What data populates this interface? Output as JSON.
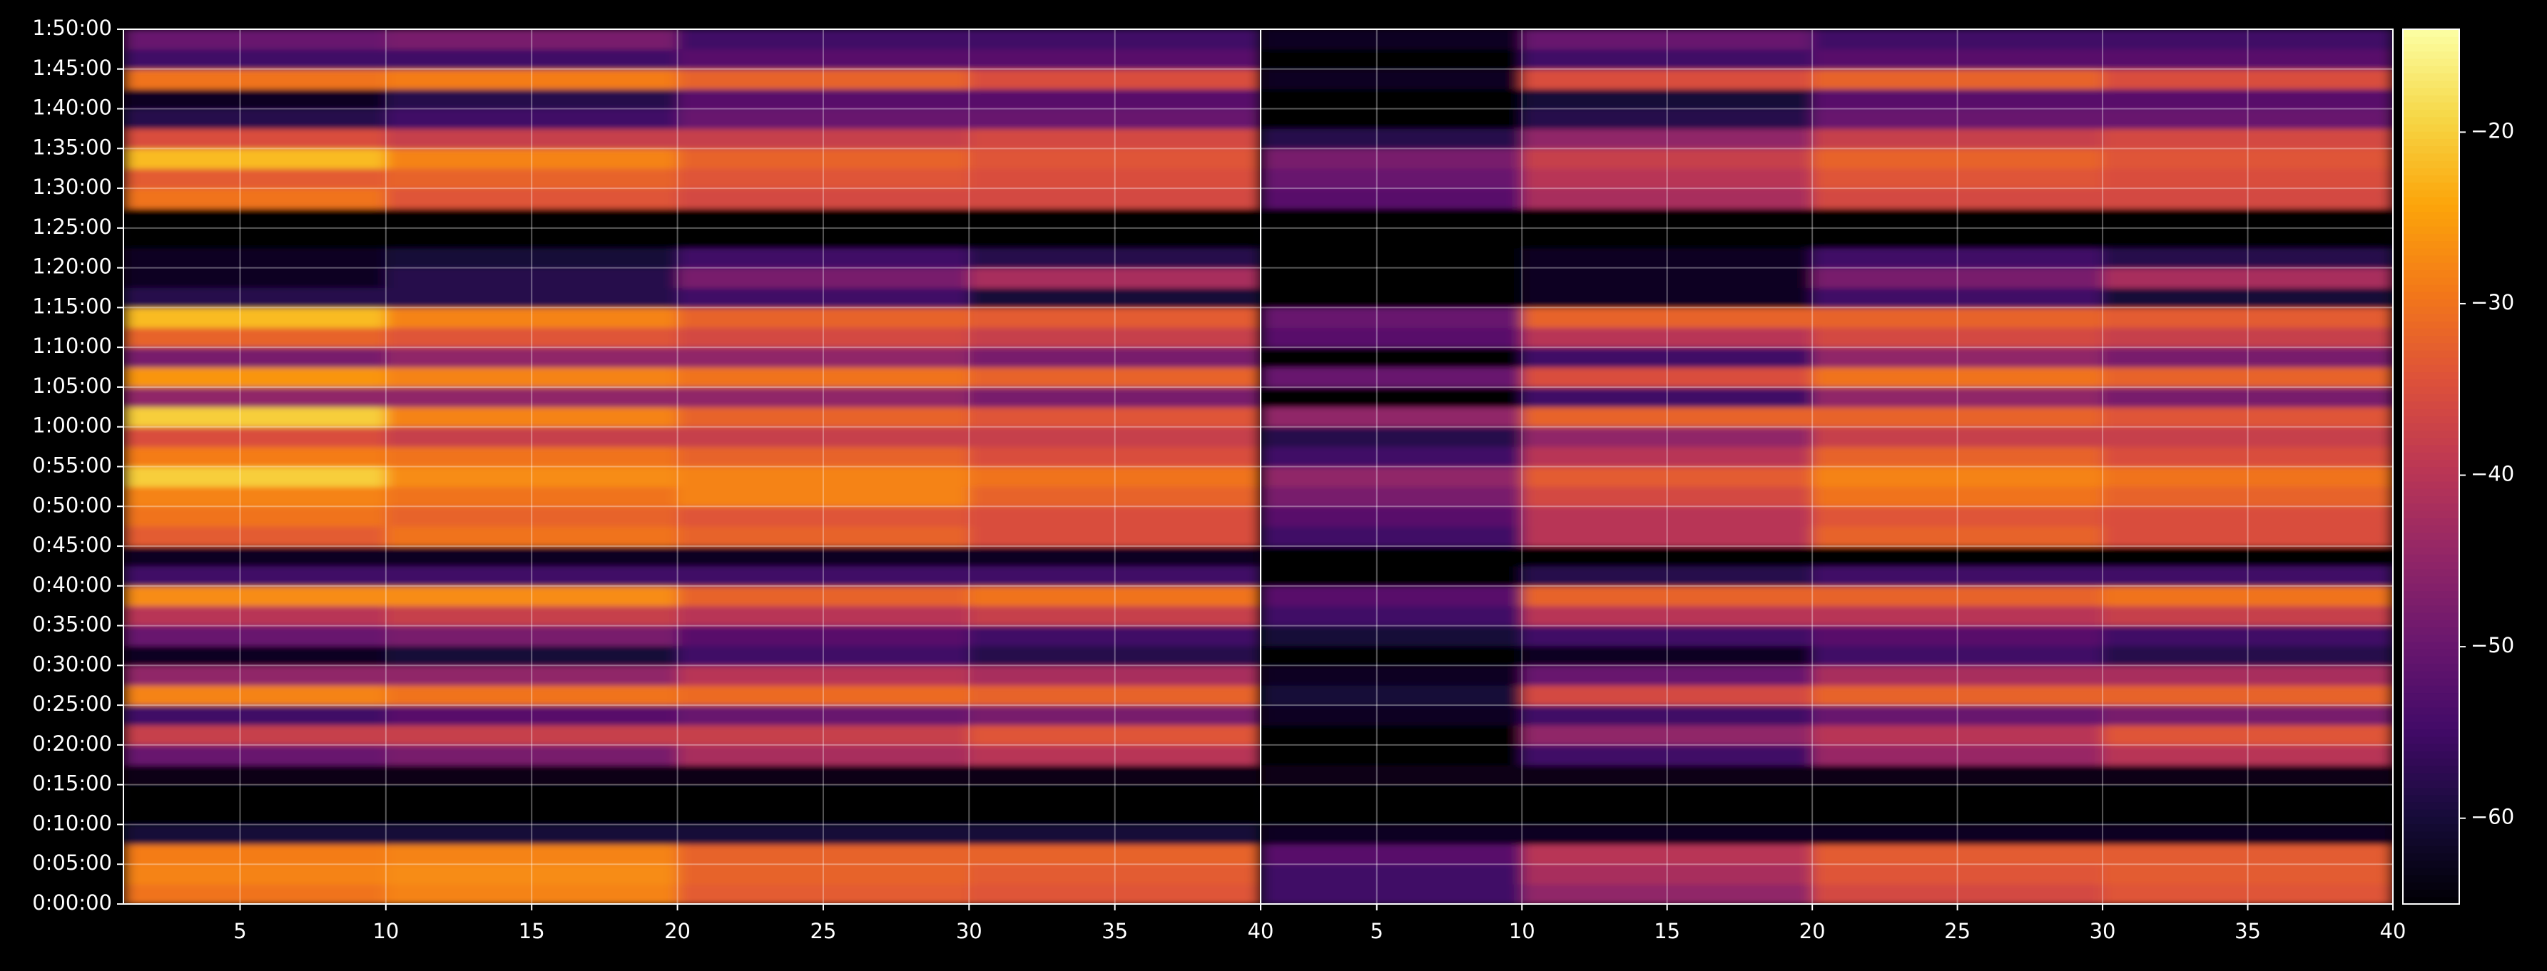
{
  "chart_data": {
    "type": "heatmap",
    "colormap": "inferno",
    "grid": true,
    "x_bins": [
      1,
      10,
      20,
      30,
      40
    ],
    "y_bins": [
      0,
      150,
      300,
      450,
      600,
      750,
      900,
      1050,
      1200,
      1350,
      1500,
      1650,
      1800,
      1950,
      2100,
      2250,
      2400,
      2550,
      2700,
      2850,
      3000,
      3150,
      3300,
      3450,
      3600,
      3750,
      3900,
      4050,
      4200,
      4350,
      4500,
      4650,
      4800,
      4950,
      5100,
      5250,
      5400,
      5550,
      5700,
      5850,
      6000,
      6150,
      6300,
      6450,
      6600
    ],
    "xlim": [
      1,
      40
    ],
    "xticks": [
      5,
      10,
      15,
      20,
      25,
      30,
      35,
      40
    ],
    "ylim": [
      0,
      6600
    ],
    "yticks": [
      {
        "value": 0,
        "label": "0:00:00"
      },
      {
        "value": 300,
        "label": "0:05:00"
      },
      {
        "value": 600,
        "label": "0:10:00"
      },
      {
        "value": 900,
        "label": "0:15:00"
      },
      {
        "value": 1200,
        "label": "0:20:00"
      },
      {
        "value": 1500,
        "label": "0:25:00"
      },
      {
        "value": 1800,
        "label": "0:30:00"
      },
      {
        "value": 2100,
        "label": "0:35:00"
      },
      {
        "value": 2400,
        "label": "0:40:00"
      },
      {
        "value": 2700,
        "label": "0:45:00"
      },
      {
        "value": 3000,
        "label": "0:50:00"
      },
      {
        "value": 3300,
        "label": "0:55:00"
      },
      {
        "value": 3600,
        "label": "1:00:00"
      },
      {
        "value": 3900,
        "label": "1:05:00"
      },
      {
        "value": 4200,
        "label": "1:10:00"
      },
      {
        "value": 4500,
        "label": "1:15:00"
      },
      {
        "value": 4800,
        "label": "1:20:00"
      },
      {
        "value": 5100,
        "label": "1:25:00"
      },
      {
        "value": 5400,
        "label": "1:30:00"
      },
      {
        "value": 5700,
        "label": "1:35:00"
      },
      {
        "value": 6000,
        "label": "1:40:00"
      },
      {
        "value": 6300,
        "label": "1:45:00"
      },
      {
        "value": 6600,
        "label": "1:50:00"
      }
    ],
    "colorbar": {
      "lim": [
        -65,
        -14
      ],
      "ticks": [
        {
          "value": -20,
          "label": "−20"
        },
        {
          "value": -30,
          "label": "−30"
        },
        {
          "value": -40,
          "label": "−40"
        },
        {
          "value": -50,
          "label": "−50"
        },
        {
          "value": -60,
          "label": "−60"
        }
      ]
    },
    "panels": [
      {
        "values": [
          [
            -30,
            -28,
            -33,
            -34
          ],
          [
            -28,
            -27,
            -32,
            -33
          ],
          [
            -29,
            -28,
            -32,
            -32
          ],
          [
            -60,
            -60,
            -60,
            -60
          ],
          [
            -65,
            -65,
            -65,
            -65
          ],
          [
            -65,
            -65,
            -65,
            -65
          ],
          [
            -63,
            -63,
            -63,
            -63
          ],
          [
            -50,
            -48,
            -42,
            -40
          ],
          [
            -38,
            -38,
            -38,
            -34
          ],
          [
            -55,
            -52,
            -50,
            -48
          ],
          [
            -28,
            -30,
            -31,
            -32
          ],
          [
            -45,
            -45,
            -40,
            -42
          ],
          [
            -62,
            -60,
            -55,
            -58
          ],
          [
            -50,
            -48,
            -52,
            -55
          ],
          [
            -40,
            -38,
            -40,
            -38
          ],
          [
            -27,
            -27,
            -32,
            -30
          ],
          [
            -55,
            -55,
            -55,
            -55
          ],
          [
            -62,
            -62,
            -62,
            -62
          ],
          [
            -33,
            -30,
            -32,
            -35
          ],
          [
            -30,
            -32,
            -34,
            -35
          ],
          [
            -28,
            -30,
            -28,
            -32
          ],
          [
            -20,
            -27,
            -28,
            -30
          ],
          [
            -29,
            -30,
            -32,
            -35
          ],
          [
            -35,
            -38,
            -38,
            -38
          ],
          [
            -20,
            -28,
            -32,
            -34
          ],
          [
            -45,
            -45,
            -45,
            -48
          ],
          [
            -26,
            -28,
            -30,
            -32
          ],
          [
            -48,
            -45,
            -45,
            -48
          ],
          [
            -32,
            -34,
            -36,
            -38
          ],
          [
            -22,
            -28,
            -32,
            -33
          ],
          [
            -58,
            -58,
            -55,
            -60
          ],
          [
            -62,
            -58,
            -48,
            -42
          ],
          [
            -62,
            -60,
            -55,
            -58
          ],
          [
            -65,
            -65,
            -65,
            -65
          ],
          [
            -65,
            -65,
            -65,
            -65
          ],
          [
            -30,
            -34,
            -36,
            -36
          ],
          [
            -33,
            -32,
            -34,
            -35
          ],
          [
            -22,
            -28,
            -32,
            -34
          ],
          [
            -35,
            -38,
            -38,
            -36
          ],
          [
            -58,
            -55,
            -50,
            -50
          ],
          [
            -62,
            -58,
            -52,
            -52
          ],
          [
            -30,
            -29,
            -32,
            -35
          ],
          [
            -55,
            -55,
            -52,
            -52
          ],
          [
            -50,
            -48,
            -55,
            -55
          ]
        ]
      },
      {
        "values": [
          [
            -55,
            -45,
            -36,
            -34
          ],
          [
            -55,
            -42,
            -34,
            -33
          ],
          [
            -52,
            -40,
            -33,
            -33
          ],
          [
            -62,
            -62,
            -62,
            -62
          ],
          [
            -65,
            -65,
            -65,
            -65
          ],
          [
            -65,
            -65,
            -65,
            -65
          ],
          [
            -63,
            -63,
            -63,
            -63
          ],
          [
            -65,
            -55,
            -44,
            -40
          ],
          [
            -65,
            -45,
            -40,
            -34
          ],
          [
            -62,
            -55,
            -50,
            -48
          ],
          [
            -60,
            -36,
            -32,
            -32
          ],
          [
            -62,
            -50,
            -42,
            -42
          ],
          [
            -65,
            -62,
            -55,
            -58
          ],
          [
            -60,
            -55,
            -52,
            -55
          ],
          [
            -55,
            -40,
            -40,
            -38
          ],
          [
            -52,
            -32,
            -32,
            -30
          ],
          [
            -65,
            -58,
            -55,
            -55
          ],
          [
            -65,
            -65,
            -65,
            -65
          ],
          [
            -55,
            -40,
            -32,
            -35
          ],
          [
            -52,
            -40,
            -34,
            -35
          ],
          [
            -48,
            -36,
            -30,
            -32
          ],
          [
            -45,
            -33,
            -28,
            -30
          ],
          [
            -55,
            -40,
            -32,
            -35
          ],
          [
            -58,
            -45,
            -38,
            -38
          ],
          [
            -45,
            -32,
            -32,
            -34
          ],
          [
            -65,
            -55,
            -45,
            -48
          ],
          [
            -50,
            -35,
            -30,
            -32
          ],
          [
            -65,
            -55,
            -45,
            -48
          ],
          [
            -52,
            -40,
            -36,
            -38
          ],
          [
            -50,
            -32,
            -32,
            -33
          ],
          [
            -65,
            -62,
            -55,
            -60
          ],
          [
            -65,
            -62,
            -48,
            -42
          ],
          [
            -65,
            -62,
            -55,
            -58
          ],
          [
            -65,
            -65,
            -65,
            -65
          ],
          [
            -65,
            -65,
            -65,
            -65
          ],
          [
            -52,
            -42,
            -36,
            -36
          ],
          [
            -50,
            -40,
            -34,
            -35
          ],
          [
            -48,
            -38,
            -32,
            -34
          ],
          [
            -58,
            -45,
            -38,
            -36
          ],
          [
            -65,
            -58,
            -50,
            -50
          ],
          [
            -65,
            -60,
            -52,
            -52
          ],
          [
            -62,
            -35,
            -32,
            -35
          ],
          [
            -65,
            -55,
            -52,
            -52
          ],
          [
            -62,
            -50,
            -55,
            -55
          ]
        ]
      }
    ]
  }
}
